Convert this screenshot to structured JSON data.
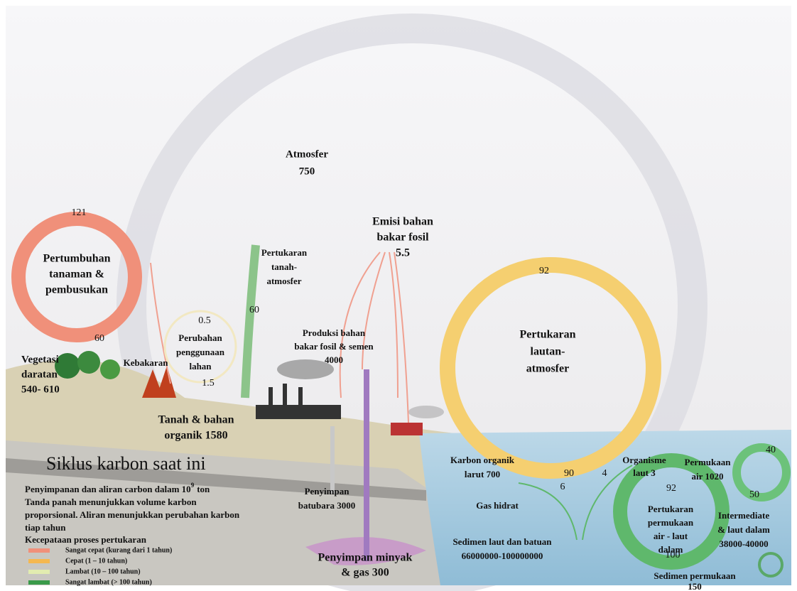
{
  "atmosphere": {
    "label": "Atmosfer",
    "value": "750"
  },
  "plant_cycle": {
    "flux_top": "121",
    "label": [
      "Pertumbuhan",
      "tanaman &",
      "pembusukan"
    ],
    "flux_bottom": "60"
  },
  "vegetation": [
    "Vegetasi",
    "daratan",
    "540- 610"
  ],
  "fire": "Kebakaran",
  "land_use": {
    "flux_top": "0.5",
    "label": [
      "Perubahan",
      "penggunaan",
      "lahan"
    ],
    "flux_bottom": "1.5"
  },
  "soil_exchange": {
    "label": [
      "Pertukaran",
      "tanah-",
      "atmosfer"
    ],
    "flux": "60"
  },
  "soil": [
    "Tanah & bahan",
    "organik 1580"
  ],
  "fossil_emission": [
    "Emisi bahan",
    "bakar fosil",
    "5.5"
  ],
  "fossil_production": [
    "Produksi bahan",
    "bakar fosil & semen",
    "4000"
  ],
  "ocean_exchange": {
    "flux_top": "92",
    "label": [
      "Pertukaran",
      "lautan-",
      "atmosfer"
    ],
    "flux_bottom": "90"
  },
  "marine_organisms": [
    "Organisme",
    "laut 3"
  ],
  "surface_water": [
    "Permukaan",
    "air 1020"
  ],
  "surface_cycle": {
    "flux_a": "40",
    "flux_b": "50"
  },
  "deep_exchange": {
    "flux_top": "92",
    "label": [
      "Pertukaran",
      "permukaan",
      "air - laut",
      "dalam"
    ],
    "flux_bottom": "100"
  },
  "deep_ocean": [
    "Intermediate",
    "& laut dalam",
    "38000-40000"
  ],
  "dissolved_organic": [
    "Karbon organik",
    "larut 700"
  ],
  "flux_6": "6",
  "flux_4": "4",
  "gas_hydrate": "Gas hidrat",
  "sediment": [
    "Sedimen laut dan batuan",
    "66000000-100000000"
  ],
  "surface_sediment": [
    "Sedimen permukaan",
    "150"
  ],
  "coal": [
    "Penyimpan",
    "batubara 3000"
  ],
  "oil_gas": [
    "Penyimpan minyak",
    "& gas 300"
  ],
  "legend": {
    "title": "Siklus karbon saat ini",
    "unit": {
      "text": "Penyimpanan dan aliran carbon dalam 10",
      "exponent": "9",
      "suffix": "ton"
    },
    "note": [
      "Tanda panah menunjukkan volume karbon",
      "proporsional. Aliran menunjukkan perubahan karbon",
      "tiap tahun"
    ],
    "speed_title": "Kecepataan proses pertukaran",
    "speeds": [
      "Sangat cepat (kurang dari 1 tahun)",
      "Cepat (1 – 10 tahun)",
      "Lambat (10 – 100 tahun)",
      "Sangat lambat (> 100 tahun)"
    ]
  }
}
